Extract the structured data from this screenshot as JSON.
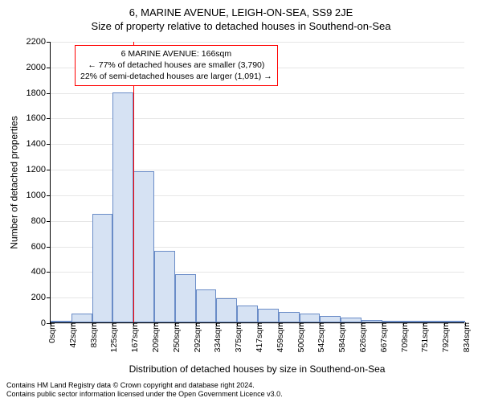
{
  "header": {
    "address": "6, MARINE AVENUE, LEIGH-ON-SEA, SS9 2JE",
    "subtitle": "Size of property relative to detached houses in Southend-on-Sea"
  },
  "chart": {
    "type": "histogram",
    "ylabel": "Number of detached properties",
    "xlabel": "Distribution of detached houses by size in Southend-on-Sea",
    "background_color": "#ffffff",
    "grid_color": "#e6e6e6",
    "axis_color": "#000000",
    "ylim": [
      0,
      2200
    ],
    "ytick_step": 200,
    "yticks": [
      0,
      200,
      400,
      600,
      800,
      1000,
      1200,
      1400,
      1600,
      1800,
      2000,
      2200
    ],
    "xticks": [
      "0sqm",
      "42sqm",
      "83sqm",
      "125sqm",
      "167sqm",
      "209sqm",
      "250sqm",
      "292sqm",
      "334sqm",
      "375sqm",
      "417sqm",
      "459sqm",
      "500sqm",
      "542sqm",
      "584sqm",
      "626sqm",
      "667sqm",
      "709sqm",
      "751sqm",
      "792sqm",
      "834sqm"
    ],
    "bars": {
      "values": [
        0,
        70,
        850,
        1800,
        1180,
        560,
        380,
        260,
        190,
        130,
        110,
        80,
        70,
        50,
        40,
        20,
        15,
        12,
        8,
        5
      ],
      "fill_color": "#d6e2f3",
      "border_color": "#6a8cc7",
      "border_width": 1
    },
    "reference_line": {
      "value_sqm": 166,
      "color": "#ff0000",
      "width": 1.5
    },
    "callout": {
      "line1": "6 MARINE AVENUE: 166sqm",
      "line2": "← 77% of detached houses are smaller (3,790)",
      "line3": "22% of semi-detached houses are larger (1,091) →",
      "border_color": "#ff0000",
      "background_color": "#ffffff",
      "fontsize": 10.5
    }
  },
  "attribution": {
    "line1": "Contains HM Land Registry data © Crown copyright and database right 2024.",
    "line2": "Contains public sector information licensed under the Open Government Licence v3.0."
  }
}
